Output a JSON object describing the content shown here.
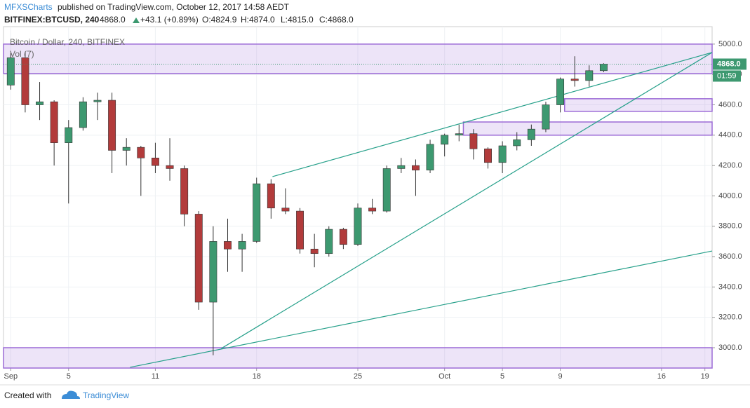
{
  "header": {
    "author": "MFXSCharts",
    "published": "published on TradingView.com, October 12, 2017 14:58 AEDT",
    "symbol": "BITFINEX:BTCUSD, 240",
    "last": "4868.0",
    "change": "+43.1 (+0.89%)",
    "ohlc": [
      "O:4824.9",
      "H:4874.0",
      "L:4815.0",
      "C:4868.0"
    ]
  },
  "footer": {
    "created_with": "Created with",
    "brand": "TradingView"
  },
  "chart_data": {
    "type": "candlestick",
    "title": "Bitcoin / Dollar, 240, BITFINEX",
    "indicator": "Vol (7)",
    "x": [
      1,
      2,
      3,
      4,
      5,
      6,
      7,
      8,
      9,
      10,
      11,
      12,
      13,
      14,
      15,
      16,
      17,
      18,
      19,
      20,
      21,
      22,
      23,
      24,
      25,
      26,
      27,
      28,
      29,
      30,
      31,
      32,
      33,
      34,
      35,
      36,
      37,
      38,
      39,
      40,
      41,
      42
    ],
    "open": [
      4730,
      4910,
      4600,
      4620,
      4350,
      4450,
      4620,
      4630,
      4300,
      4320,
      4250,
      4200,
      4180,
      3880,
      3300,
      3700,
      3650,
      3700,
      4080,
      3920,
      3900,
      3650,
      3620,
      3780,
      3680,
      3920,
      3900,
      4180,
      4200,
      4170,
      4340,
      4400,
      4410,
      4310,
      4220,
      4330,
      4370,
      4440,
      4600,
      4770,
      4760,
      4825
    ],
    "high": [
      4940,
      4950,
      4750,
      4630,
      4500,
      4650,
      4680,
      4680,
      4380,
      4330,
      4350,
      4380,
      4200,
      3900,
      3800,
      3850,
      3750,
      4120,
      4110,
      4050,
      3920,
      3750,
      3800,
      3790,
      3950,
      3980,
      4200,
      4250,
      4240,
      4370,
      4410,
      4470,
      4440,
      4320,
      4360,
      4420,
      4470,
      4620,
      4780,
      4920,
      4860,
      4874
    ],
    "low": [
      4700,
      4550,
      4500,
      4200,
      3950,
      4430,
      4500,
      4150,
      4200,
      4000,
      4150,
      4100,
      3800,
      3250,
      2950,
      3500,
      3500,
      3690,
      3850,
      3880,
      3620,
      3530,
      3600,
      3650,
      3670,
      3880,
      3890,
      4150,
      4000,
      4150,
      4260,
      4360,
      4240,
      4180,
      4150,
      4300,
      4330,
      4420,
      4550,
      4720,
      4720,
      4815
    ],
    "close": [
      4910,
      4600,
      4620,
      4350,
      4450,
      4620,
      4630,
      4300,
      4320,
      4250,
      4200,
      4180,
      3880,
      3300,
      3700,
      3650,
      3700,
      4080,
      3920,
      3900,
      3650,
      3620,
      3780,
      3680,
      3920,
      3900,
      4180,
      4200,
      4170,
      4340,
      4400,
      4410,
      4310,
      4220,
      4330,
      4370,
      4440,
      4600,
      4770,
      4760,
      4825,
      4868
    ],
    "up_color": "#3d9970",
    "down_color": "#b23b3b",
    "xlim": [
      0.5,
      49.5
    ],
    "xticks": [
      {
        "value": 1,
        "label": "Sep"
      },
      5,
      11,
      18,
      25,
      {
        "value": 31,
        "label": "Oct"
      },
      {
        "value": 35,
        "label": "5"
      },
      {
        "value": 39,
        "label": "9"
      },
      {
        "value": 46,
        "label": "16"
      },
      {
        "value": 49,
        "label": "19"
      }
    ],
    "ylim": [
      2866,
      5115
    ],
    "yticks": [
      {
        "value": 3000,
        "label": "3000.0"
      },
      {
        "value": 3200,
        "label": "3200.0"
      },
      {
        "value": 3400,
        "label": "3400.0"
      },
      {
        "value": 3600,
        "label": "3600.0"
      },
      {
        "value": 3800,
        "label": "3800.0"
      },
      {
        "value": 4000,
        "label": "4000.0"
      },
      {
        "value": 4200,
        "label": "4200.0"
      },
      {
        "value": 4400,
        "label": "4400.0"
      },
      {
        "value": 4600,
        "label": "4600.0"
      },
      {
        "value": 4800,
        "label": "4800.0"
      },
      {
        "value": 5000,
        "label": "5000.0"
      }
    ],
    "grid": true,
    "price_label": {
      "value": 4868,
      "label": "4868.0"
    },
    "countdown": "01:59",
    "zones": [
      {
        "x0": 0.5,
        "low": 4806,
        "high": 5000
      },
      {
        "x0": 39.3,
        "low": 4557,
        "high": 4640
      },
      {
        "x0": 32.3,
        "low": 4400,
        "high": 4487
      },
      {
        "x0": 0.5,
        "low": 2866,
        "high": 3000
      }
    ],
    "zone_color": "#9c6bd6",
    "trendlines": [
      {
        "x": [
          9.25,
          49.5
        ],
        "y": [
          2871,
          3637
        ]
      },
      {
        "x": [
          15.56,
          49.5
        ],
        "y": [
          2995,
          4945
        ]
      },
      {
        "x": [
          19.1,
          49.5
        ],
        "y": [
          4127,
          4945
        ]
      }
    ],
    "trendline_color": "#26a08a"
  }
}
